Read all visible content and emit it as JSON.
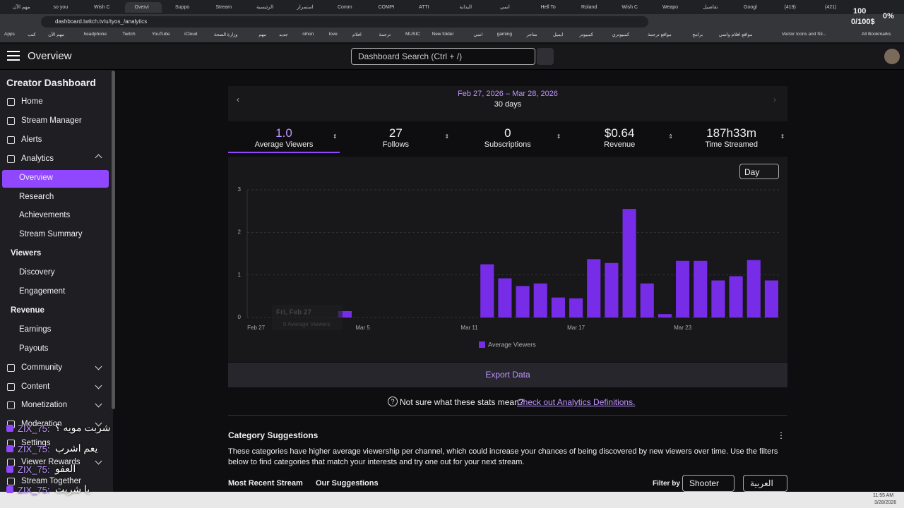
{
  "browser": {
    "tabs": [
      "مهم الآن",
      "so you",
      "Wish C",
      "Overvi",
      "Suppo",
      "Stream",
      "الرئيسية",
      "استمرار",
      "Comm",
      "COMPI",
      "ATTI",
      "البداية",
      "انمي",
      "Hell To",
      "Roland",
      "Wish C",
      "Weapo",
      "تفاصيل",
      "Googl",
      "(419)",
      "(421)"
    ],
    "url": "dashboard.twitch.tv/u/tyos_/analytics",
    "bookmarks": [
      "Apps",
      "كتب",
      "مهم الآن",
      "headphone",
      "Twitch",
      "YouTube",
      "iCloud",
      "وزارة الصحة",
      "مهم",
      "جديد",
      "nihon",
      "love",
      "افلام",
      "ترجمة",
      "MUSIC",
      "New folder",
      "انمي",
      "gaming",
      "متاجر",
      "ايميل",
      "كمبيوتر",
      "كمبيوتري",
      "مواقع ترجمة",
      "برامج",
      "مواقع افلام وانمي",
      "Vector Icons and Sti...",
      "All Bookmarks"
    ],
    "extension_top": "100",
    "extension_pct": "0%",
    "extension_money": "0/100$"
  },
  "header": {
    "title": "Overview",
    "search_placeholder": "Dashboard Search (Ctrl + /)"
  },
  "sidebar": {
    "title": "Creator Dashboard",
    "items": [
      "Home",
      "Stream Manager",
      "Alerts",
      "Analytics",
      "Overview",
      "Research",
      "Achievements",
      "Stream Summary",
      "Viewers",
      "Discovery",
      "Engagement",
      "Revenue",
      "Earnings",
      "Payouts",
      "Community",
      "Content",
      "Monetization",
      "Moderation",
      "Settings",
      "Viewer Rewards",
      "Stream Together"
    ]
  },
  "date_range": {
    "range": "Feb 27, 2026 – Mar 28, 2026",
    "days": "30 days"
  },
  "stats": [
    {
      "value": "1.0",
      "label": "Average Viewers"
    },
    {
      "value": "27",
      "label": "Follows"
    },
    {
      "value": "0",
      "label": "Subscriptions"
    },
    {
      "value": "$0.64",
      "label": "Revenue"
    },
    {
      "value": "187h33m",
      "label": "Time Streamed"
    }
  ],
  "period": "Day",
  "chart_data": {
    "type": "bar",
    "categories": [
      "Feb 27",
      null,
      null,
      null,
      null,
      null,
      "Mar 5",
      null,
      null,
      null,
      null,
      null,
      "Mar 11",
      null,
      null,
      null,
      null,
      null,
      "Mar 17",
      null,
      null,
      null,
      null,
      null,
      "Mar 23",
      null,
      null,
      null,
      null,
      null
    ],
    "series": [
      {
        "name": "Average Viewers",
        "color": "#772ce8",
        "values": [
          0,
          0,
          0,
          0,
          0,
          0.15,
          0,
          0,
          0,
          0,
          0,
          0,
          0,
          1.25,
          0.92,
          0.74,
          0.8,
          0.47,
          0.45,
          1.37,
          1.28,
          2.55,
          0.8,
          0.08,
          1.33,
          1.33,
          0.87,
          0.97,
          1.35,
          0.87
        ]
      }
    ],
    "ylim": [
      0,
      3
    ],
    "yticks": [
      0,
      1,
      2,
      3
    ],
    "grid": true,
    "tooltip": {
      "title": "Fri, Feb 27",
      "text": "0 Average Viewers"
    }
  },
  "export": "Export Data",
  "help": {
    "text": "Not sure what these stats mean?",
    "link": "Check out Analytics Definitions."
  },
  "category": {
    "title": "Category Suggestions",
    "description": "These categories have higher average viewership per channel, which could increase your chances of being discovered by new viewers over time. Use the filters below to find categories that match your interests and try one out for your next stream.",
    "tabs": [
      "Most Recent Stream",
      "Our Suggestions"
    ],
    "filter_label": "Filter by",
    "filters": [
      "Shooter",
      "العربية"
    ]
  },
  "chat": [
    {
      "user": "ZIX_75:",
      "text": "شربت مويه ؟"
    },
    {
      "user": "ZIX_75:",
      "text": "يعم اشرب"
    },
    {
      "user": "ZIX_75:",
      "text": "العفو"
    },
    {
      "user": "ZIX_75:",
      "text": "يا شربت"
    }
  ],
  "taskbar": {
    "time": "11:55 AM",
    "date": "3/28/2026"
  }
}
